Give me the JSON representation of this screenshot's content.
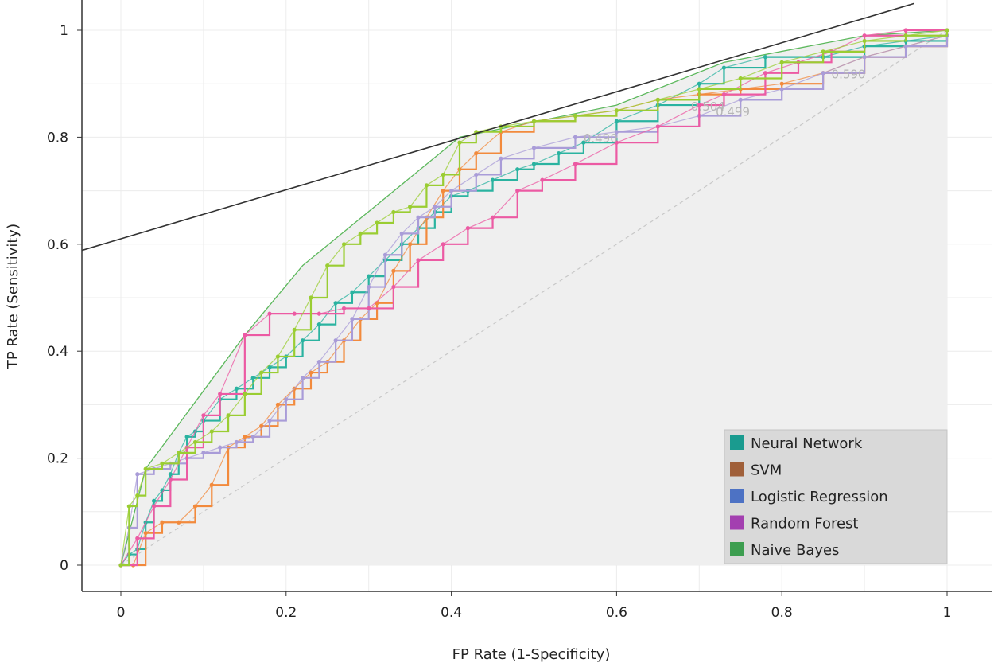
{
  "chart_data": {
    "type": "line",
    "title": "",
    "xlabel": "FP Rate (1-Specificity)",
    "ylabel": "TP Rate (Sensitivity)",
    "xlim": [
      0,
      1
    ],
    "ylim": [
      0,
      1
    ],
    "xticks": [
      "0",
      "0.2",
      "0.4",
      "0.6",
      "0.8",
      "1"
    ],
    "yticks": [
      "0",
      "0.2",
      "0.4",
      "0.6",
      "0.8",
      "1"
    ],
    "grid": true,
    "legend_position": "bottom-right",
    "legend": [
      "Neural Network",
      "SVM",
      "Logistic Regression",
      "Random Forest",
      "Naive Bayes"
    ],
    "legend_colors": [
      "#1a9b8f",
      "#a0603a",
      "#4d72c4",
      "#a33fb0",
      "#3d9e50"
    ],
    "series": [
      {
        "name": "Neural Network",
        "color": "#2ab3a0",
        "x": [
          0,
          0.01,
          0.02,
          0.03,
          0.04,
          0.05,
          0.06,
          0.07,
          0.08,
          0.09,
          0.1,
          0.12,
          0.14,
          0.16,
          0.18,
          0.2,
          0.22,
          0.24,
          0.26,
          0.28,
          0.3,
          0.32,
          0.34,
          0.36,
          0.38,
          0.4,
          0.42,
          0.45,
          0.48,
          0.5,
          0.53,
          0.56,
          0.6,
          0.65,
          0.7,
          0.73,
          0.78,
          0.85,
          0.9,
          0.95,
          1.0
        ],
        "y": [
          0,
          0.02,
          0.03,
          0.08,
          0.12,
          0.14,
          0.17,
          0.21,
          0.24,
          0.25,
          0.27,
          0.31,
          0.33,
          0.35,
          0.37,
          0.39,
          0.42,
          0.45,
          0.49,
          0.51,
          0.54,
          0.57,
          0.6,
          0.63,
          0.66,
          0.69,
          0.7,
          0.72,
          0.74,
          0.75,
          0.77,
          0.79,
          0.83,
          0.86,
          0.9,
          0.93,
          0.95,
          0.95,
          0.97,
          0.98,
          0.99
        ]
      },
      {
        "name": "SVM",
        "color": "#f28a3c",
        "x": [
          0,
          0.015,
          0.03,
          0.05,
          0.07,
          0.09,
          0.11,
          0.13,
          0.15,
          0.17,
          0.19,
          0.21,
          0.23,
          0.25,
          0.27,
          0.29,
          0.31,
          0.33,
          0.35,
          0.37,
          0.39,
          0.41,
          0.43,
          0.46,
          0.5,
          0.55,
          0.6,
          0.65,
          0.7,
          0.75,
          0.8,
          0.85,
          0.9,
          0.95,
          1.0
        ],
        "y": [
          0,
          0,
          0.06,
          0.08,
          0.08,
          0.11,
          0.15,
          0.22,
          0.24,
          0.26,
          0.3,
          0.33,
          0.36,
          0.38,
          0.42,
          0.46,
          0.49,
          0.55,
          0.6,
          0.65,
          0.7,
          0.74,
          0.77,
          0.81,
          0.83,
          0.84,
          0.85,
          0.87,
          0.88,
          0.89,
          0.9,
          0.92,
          0.95,
          0.97,
          0.99
        ]
      },
      {
        "name": "Logistic Regression",
        "color": "#a99cd8",
        "x": [
          0,
          0.01,
          0.02,
          0.04,
          0.06,
          0.08,
          0.1,
          0.12,
          0.14,
          0.16,
          0.18,
          0.2,
          0.22,
          0.24,
          0.26,
          0.28,
          0.3,
          0.32,
          0.34,
          0.36,
          0.38,
          0.4,
          0.43,
          0.46,
          0.5,
          0.55,
          0.6,
          0.65,
          0.7,
          0.75,
          0.8,
          0.85,
          0.9,
          0.95,
          1.0
        ],
        "y": [
          0,
          0.07,
          0.17,
          0.18,
          0.19,
          0.2,
          0.21,
          0.22,
          0.23,
          0.24,
          0.27,
          0.31,
          0.35,
          0.38,
          0.42,
          0.46,
          0.52,
          0.58,
          0.62,
          0.65,
          0.67,
          0.7,
          0.73,
          0.76,
          0.78,
          0.8,
          0.81,
          0.82,
          0.84,
          0.87,
          0.89,
          0.92,
          0.95,
          0.97,
          0.99
        ]
      },
      {
        "name": "Random Forest",
        "color": "#ec5aa3",
        "x": [
          0,
          0.02,
          0.04,
          0.06,
          0.08,
          0.1,
          0.12,
          0.15,
          0.18,
          0.21,
          0.24,
          0.27,
          0.3,
          0.33,
          0.36,
          0.39,
          0.42,
          0.45,
          0.48,
          0.51,
          0.55,
          0.6,
          0.65,
          0.7,
          0.73,
          0.78,
          0.82,
          0.86,
          0.9,
          0.95,
          1.0
        ],
        "y": [
          0,
          0.05,
          0.11,
          0.16,
          0.22,
          0.28,
          0.32,
          0.43,
          0.47,
          0.47,
          0.47,
          0.48,
          0.48,
          0.52,
          0.57,
          0.6,
          0.63,
          0.65,
          0.7,
          0.72,
          0.75,
          0.79,
          0.82,
          0.86,
          0.88,
          0.92,
          0.94,
          0.96,
          0.99,
          1.0,
          1.0
        ]
      },
      {
        "name": "Naive Bayes",
        "color": "#9acd32",
        "x": [
          0,
          0.01,
          0.02,
          0.03,
          0.05,
          0.07,
          0.09,
          0.11,
          0.13,
          0.15,
          0.17,
          0.19,
          0.21,
          0.23,
          0.25,
          0.27,
          0.29,
          0.31,
          0.33,
          0.35,
          0.37,
          0.39,
          0.41,
          0.43,
          0.46,
          0.5,
          0.55,
          0.6,
          0.65,
          0.7,
          0.75,
          0.8,
          0.85,
          0.9,
          0.95,
          1.0
        ],
        "y": [
          0,
          0.11,
          0.13,
          0.18,
          0.19,
          0.21,
          0.23,
          0.25,
          0.28,
          0.32,
          0.36,
          0.39,
          0.44,
          0.5,
          0.56,
          0.6,
          0.62,
          0.64,
          0.66,
          0.67,
          0.71,
          0.73,
          0.79,
          0.81,
          0.82,
          0.83,
          0.84,
          0.85,
          0.87,
          0.89,
          0.91,
          0.94,
          0.96,
          0.98,
          0.99,
          1.0
        ]
      }
    ],
    "convex_hull": {
      "x": [
        0,
        0.03,
        0.15,
        0.22,
        0.41,
        0.6,
        0.73,
        0.9,
        1.0
      ],
      "y": [
        0,
        0.18,
        0.43,
        0.56,
        0.8,
        0.86,
        0.94,
        0.99,
        1.0
      ]
    },
    "iso_performance_line": {
      "x": [
        0,
        0.96
      ],
      "y": [
        0.61,
        1.05
      ]
    },
    "diagonal": {
      "x": [
        0,
        1
      ],
      "y": [
        0,
        1
      ]
    },
    "threshold_labels": [
      {
        "text": "0.490",
        "x": 0.56,
        "y": 0.79
      },
      {
        "text": "0.504",
        "x": 0.69,
        "y": 0.85
      },
      {
        "text": "0.499",
        "x": 0.72,
        "y": 0.84
      },
      {
        "text": "0.590",
        "x": 0.86,
        "y": 0.91
      }
    ]
  }
}
